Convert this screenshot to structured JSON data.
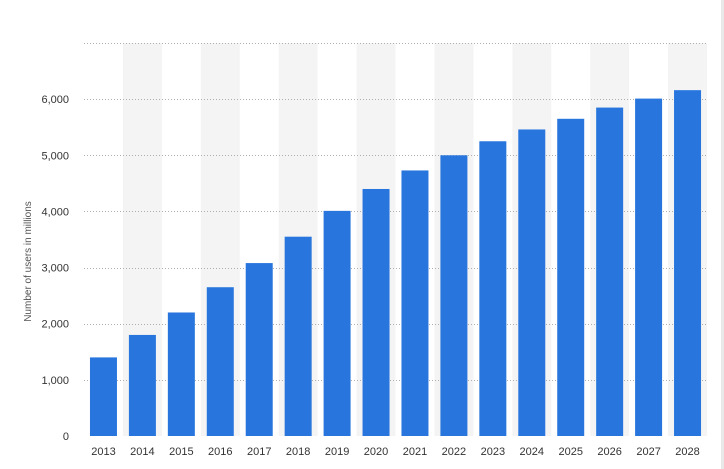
{
  "chart_data": {
    "type": "bar",
    "categories": [
      "2013",
      "2014",
      "2015",
      "2016",
      "2017",
      "2018",
      "2019",
      "2020",
      "2021",
      "2022",
      "2023",
      "2024",
      "2025",
      "2026",
      "2027",
      "2028"
    ],
    "values": [
      1400,
      1800,
      2200,
      2650,
      3080,
      3550,
      4010,
      4400,
      4730,
      5000,
      5250,
      5460,
      5650,
      5850,
      6010,
      6160
    ],
    "xlabel": "",
    "ylabel": "Number of users in millions",
    "ylim": [
      0,
      7000
    ],
    "yticks": [
      0,
      1000,
      2000,
      3000,
      4000,
      5000,
      6000
    ],
    "ytick_labels": [
      "0",
      "1,000",
      "2,000",
      "3,000",
      "4,000",
      "5,000",
      "6,000"
    ],
    "grid": true,
    "bar_color": "#2876dd",
    "band_color": "#f4f4f4",
    "grid_color": "#b0b0b0"
  }
}
